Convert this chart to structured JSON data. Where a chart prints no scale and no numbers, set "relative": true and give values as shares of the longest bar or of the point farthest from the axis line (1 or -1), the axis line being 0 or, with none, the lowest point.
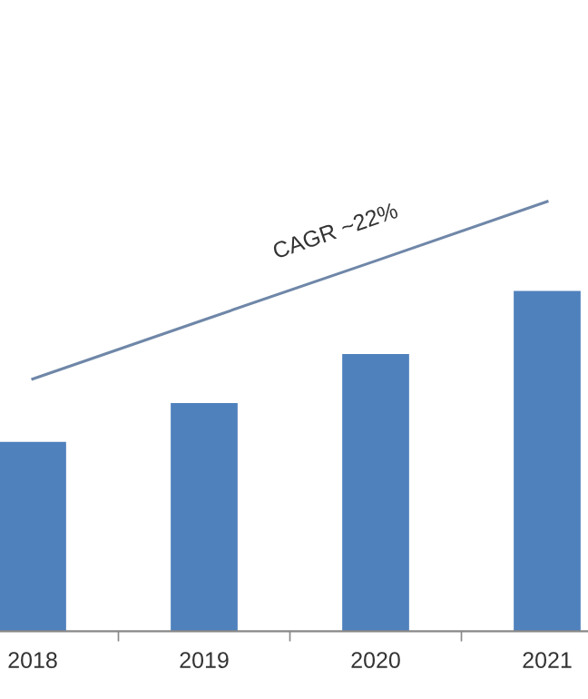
{
  "chart_data": {
    "type": "bar",
    "relative": true,
    "categories": [
      "2018",
      "2019",
      "2020",
      "2021"
    ],
    "series": [
      {
        "color": "#4f81bd",
        "values": [
          0.441,
          0.531,
          0.645,
          0.792
        ]
      },
      {
        "type": "line",
        "color": "#6f87a8",
        "values": [
          0.587,
          0.725,
          0.862,
          1
        ]
      }
    ],
    "annotations": [
      "CAGR ~22%"
    ],
    "grid": false,
    "legend": false,
    "marker": "none"
  }
}
